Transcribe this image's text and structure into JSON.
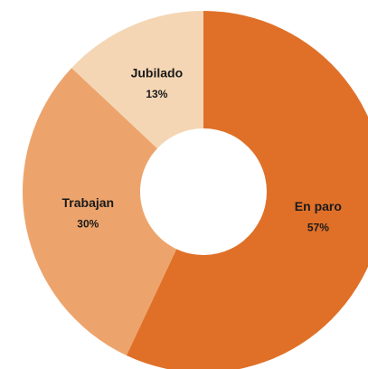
{
  "chart_data": {
    "type": "donut",
    "categories": [
      "En paro",
      "Trabajan",
      "Jubilado"
    ],
    "values": [
      57,
      30,
      13
    ],
    "value_labels": [
      "57%",
      "30%",
      "13%"
    ],
    "colors": [
      "#e07028",
      "#eda46c",
      "#f4d6b4"
    ]
  }
}
